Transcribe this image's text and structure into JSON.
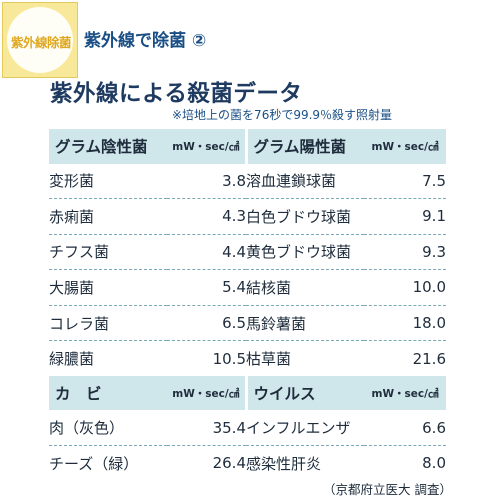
{
  "badge": "紫外線除菌",
  "header_title": "紫外線で除菌 ②",
  "main_title": "紫外線による殺菌データ",
  "note": "※培地上の菌を76秒で99.9％殺す照射量",
  "unit": "mW・sec/㎠",
  "sections": [
    {
      "left_title": "グラム陰性菌",
      "right_title": "グラム陽性菌",
      "rows": [
        {
          "l_name": "変形菌",
          "l_val": "3.8",
          "r_name": "溶血連鎖球菌",
          "r_val": "7.5"
        },
        {
          "l_name": "赤痢菌",
          "l_val": "4.3",
          "r_name": "白色ブドウ球菌",
          "r_val": "9.1"
        },
        {
          "l_name": "チフス菌",
          "l_val": "4.4",
          "r_name": "黄色ブドウ球菌",
          "r_val": "9.3"
        },
        {
          "l_name": "大腸菌",
          "l_val": "5.4",
          "r_name": "結核菌",
          "r_val": "10.0"
        },
        {
          "l_name": "コレラ菌",
          "l_val": "6.5",
          "r_name": "馬鈴薯菌",
          "r_val": "18.0"
        },
        {
          "l_name": "緑膿菌",
          "l_val": "10.5",
          "r_name": "枯草菌",
          "r_val": "21.6"
        }
      ]
    },
    {
      "left_title": "カ　ビ",
      "right_title": "ウイルス",
      "rows": [
        {
          "l_name": "肉（灰色）",
          "l_val": "35.4",
          "r_name": "インフルエンザ",
          "r_val": "6.6"
        },
        {
          "l_name": "チーズ（緑）",
          "l_val": "26.4",
          "r_name": "感染性肝炎",
          "r_val": "8.0"
        }
      ]
    }
  ],
  "footer": "（京都府立医大 調査）"
}
